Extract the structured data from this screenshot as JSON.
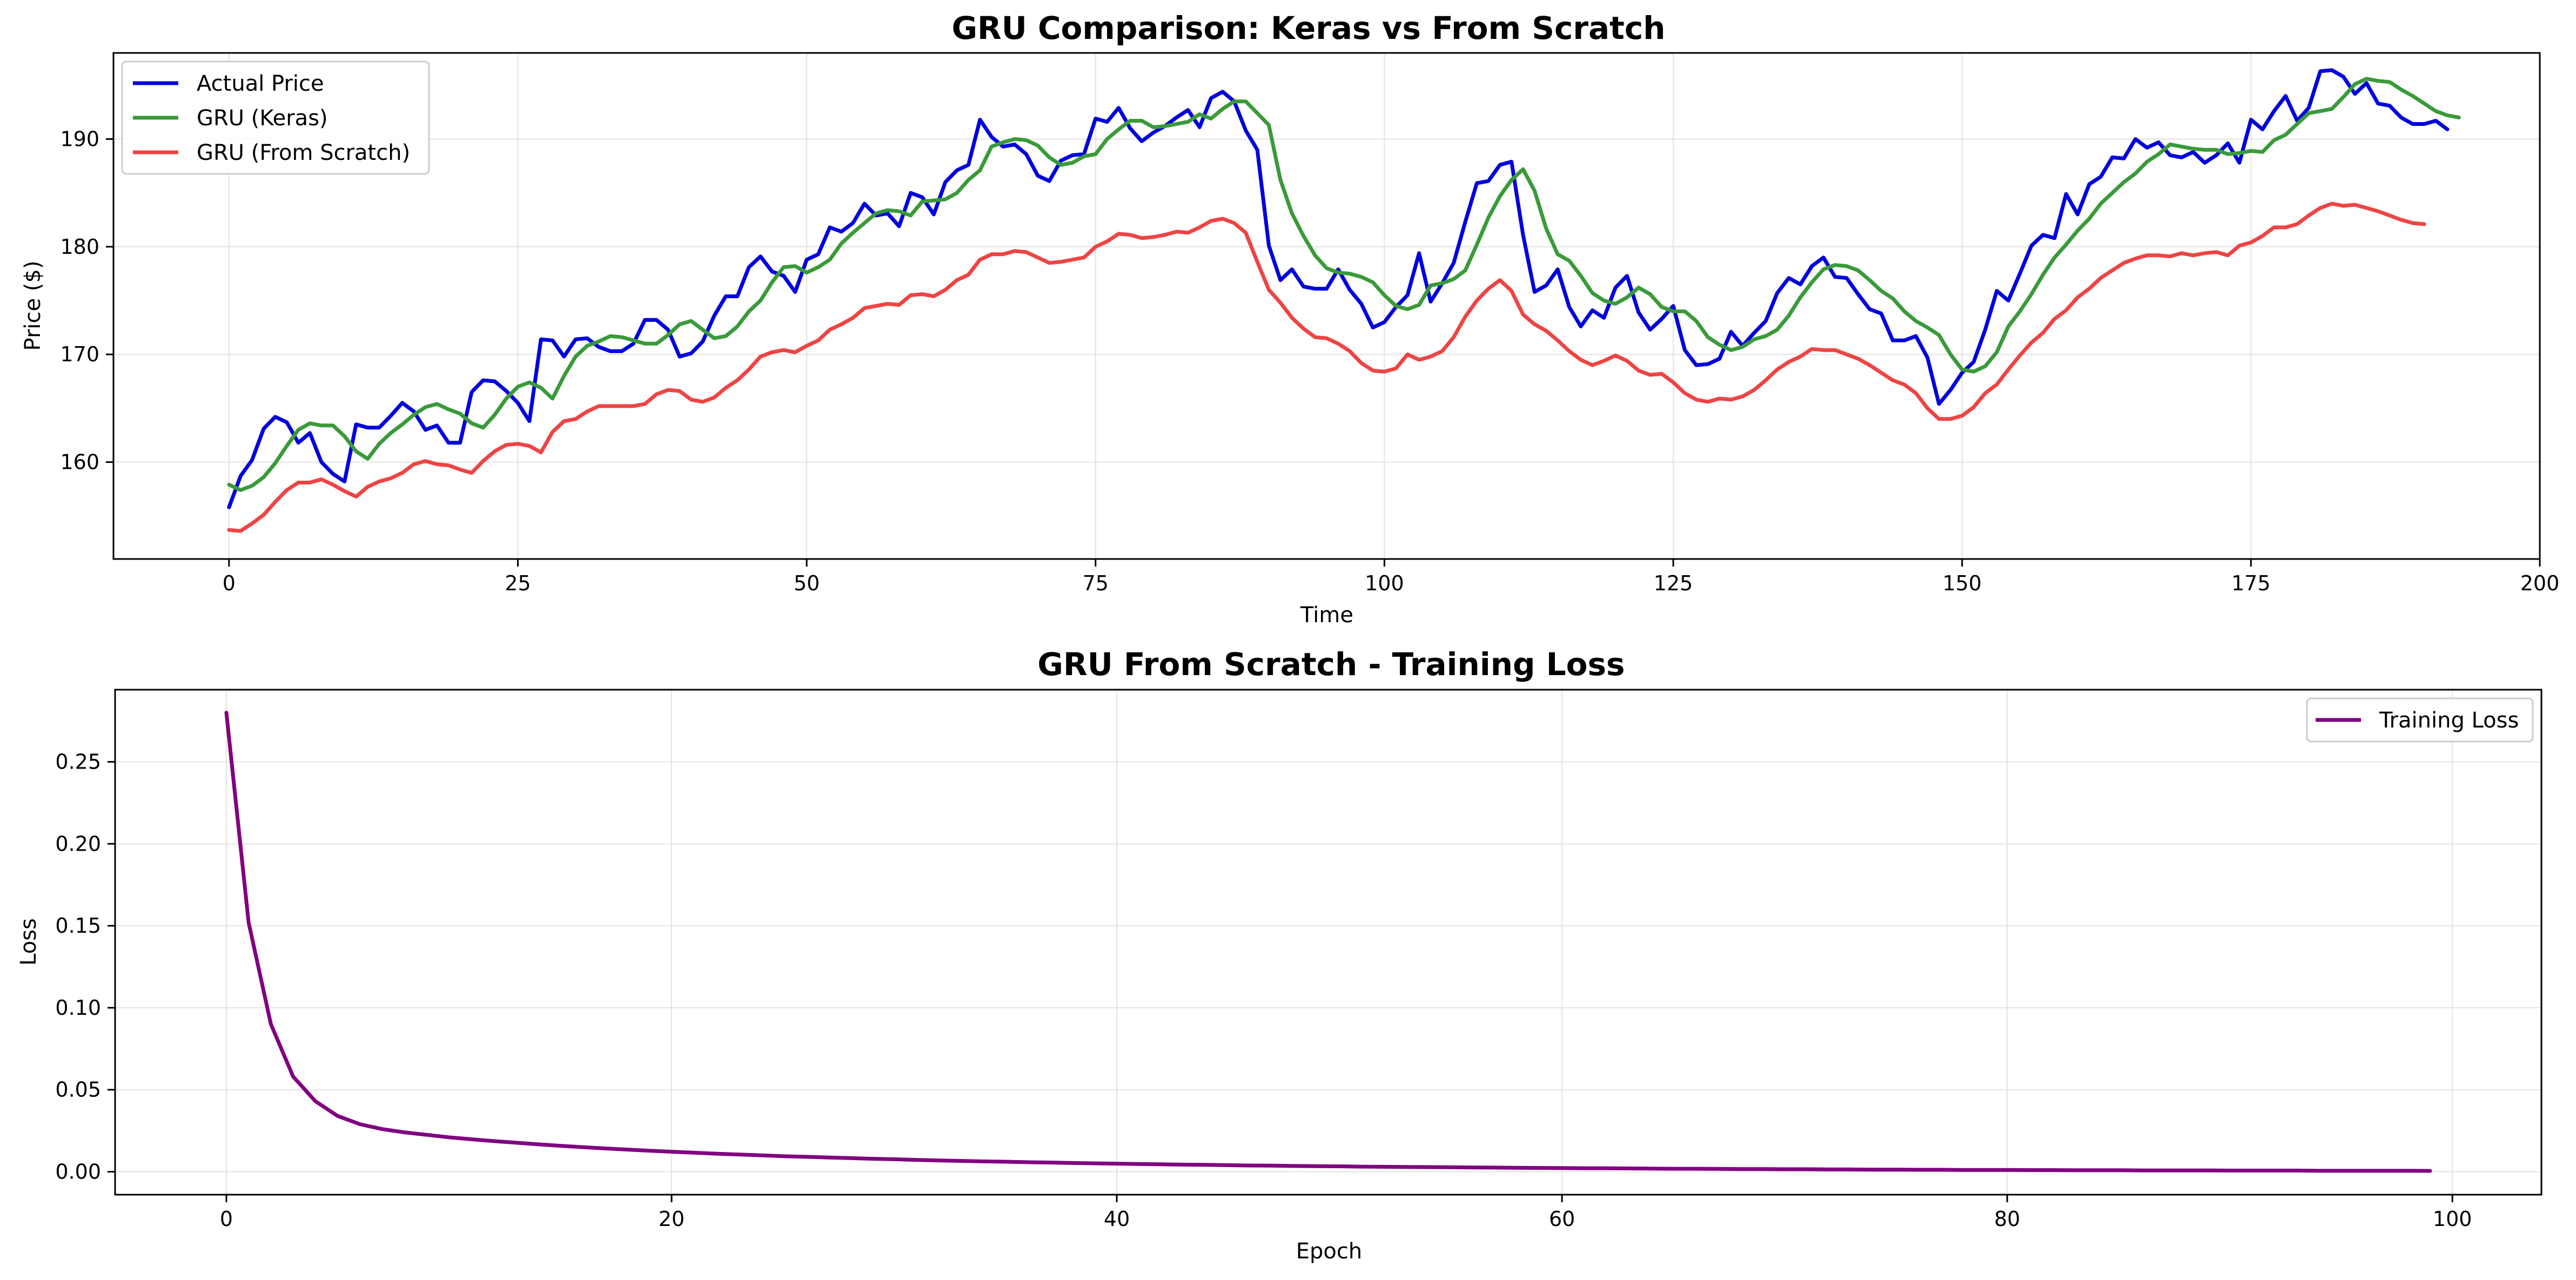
{
  "chart_data": [
    {
      "type": "line",
      "title": "GRU Comparison: Keras vs From Scratch",
      "xlabel": "Time",
      "ylabel": "Price ($)",
      "xlim": [
        -10,
        200
      ],
      "ylim": [
        151,
        198
      ],
      "xticks": [
        "0",
        "25",
        "50",
        "75",
        "100",
        "125",
        "150",
        "175",
        "200"
      ],
      "yticks": [
        "160",
        "170",
        "180",
        "190"
      ],
      "grid": true,
      "legend_position": "upper-left",
      "series": [
        {
          "name": "Actual Price",
          "color": "#0000dd",
          "x_start": 0,
          "values": [
            155.8,
            158.7,
            160.2,
            163.1,
            164.2,
            163.7,
            161.8,
            162.7,
            160.0,
            158.9,
            158.2,
            163.5,
            163.2,
            163.2,
            164.3,
            165.5,
            164.7,
            163.0,
            163.4,
            161.8,
            161.8,
            166.5,
            167.6,
            167.5,
            166.6,
            165.5,
            163.8,
            171.4,
            171.3,
            169.8,
            171.4,
            171.5,
            170.7,
            170.3,
            170.3,
            171.0,
            173.2,
            173.2,
            172.3,
            169.8,
            170.1,
            171.2,
            173.6,
            175.4,
            175.4,
            178.1,
            179.1,
            177.7,
            177.3,
            175.8,
            178.8,
            179.3,
            181.8,
            181.4,
            182.2,
            184.0,
            182.9,
            183.1,
            181.9,
            185.0,
            184.6,
            183.0,
            186.0,
            187.1,
            187.6,
            191.8,
            190.2,
            189.3,
            189.5,
            188.6,
            186.6,
            186.1,
            188.0,
            188.5,
            188.6,
            191.9,
            191.6,
            192.9,
            191.0,
            189.8,
            190.6,
            191.2,
            192.0,
            192.7,
            191.1,
            193.8,
            194.4,
            193.5,
            190.8,
            189.0,
            180.1,
            176.9,
            177.9,
            176.3,
            176.1,
            176.1,
            177.9,
            176.0,
            174.7,
            172.5,
            173.0,
            174.4,
            175.5,
            179.4,
            174.9,
            176.6,
            178.5,
            182.3,
            185.9,
            186.1,
            187.6,
            187.9,
            181.1,
            175.8,
            176.4,
            177.9,
            174.4,
            172.6,
            174.1,
            173.4,
            176.2,
            177.3,
            173.9,
            172.3,
            173.3,
            174.5,
            170.4,
            169.0,
            169.1,
            169.6,
            172.1,
            170.8,
            172.0,
            173.1,
            175.7,
            177.1,
            176.5,
            178.2,
            179.0,
            177.2,
            177.1,
            175.6,
            174.2,
            173.8,
            171.3,
            171.3,
            171.7,
            169.7,
            165.4,
            166.7,
            168.3,
            169.3,
            172.3,
            175.9,
            175.0,
            177.5,
            180.1,
            181.1,
            180.8,
            184.9,
            183.0,
            185.8,
            186.5,
            188.3,
            188.2,
            190.0,
            189.2,
            189.7,
            188.5,
            188.3,
            188.8,
            187.8,
            188.5,
            189.6,
            187.8,
            191.8,
            190.9,
            192.6,
            194.0,
            191.7,
            192.9,
            196.3,
            196.4,
            195.8,
            194.2,
            195.2,
            193.3,
            193.1,
            192.0,
            191.4,
            191.4,
            191.7,
            190.9
          ]
        },
        {
          "name": "GRU (Keras)",
          "color": "#3a9a3a",
          "x_start": 0,
          "values": [
            157.9,
            157.4,
            157.8,
            158.6,
            159.9,
            161.5,
            163.0,
            163.6,
            163.4,
            163.4,
            162.4,
            161.0,
            160.3,
            161.7,
            162.7,
            163.5,
            164.4,
            165.1,
            165.4,
            164.9,
            164.5,
            163.6,
            163.2,
            164.4,
            165.9,
            167.0,
            167.4,
            166.9,
            165.9,
            168.0,
            169.8,
            170.8,
            171.2,
            171.7,
            171.6,
            171.3,
            171.0,
            171.0,
            171.8,
            172.8,
            173.1,
            172.3,
            171.5,
            171.7,
            172.6,
            174.0,
            175.0,
            176.7,
            178.1,
            178.2,
            177.6,
            178.1,
            178.8,
            180.3,
            181.3,
            182.2,
            183.1,
            183.4,
            183.3,
            182.9,
            184.2,
            184.3,
            184.4,
            185.0,
            186.2,
            187.1,
            189.3,
            189.7,
            190.0,
            189.9,
            189.4,
            188.3,
            187.6,
            187.8,
            188.4,
            188.6,
            190.0,
            190.9,
            191.7,
            191.7,
            191.1,
            191.2,
            191.4,
            191.6,
            192.3,
            191.9,
            192.8,
            193.5,
            193.5,
            192.4,
            191.3,
            186.2,
            183.1,
            181.0,
            179.2,
            178.0,
            177.6,
            177.5,
            177.2,
            176.7,
            175.5,
            174.5,
            174.2,
            174.6,
            176.4,
            176.6,
            177.0,
            177.8,
            180.2,
            182.7,
            184.7,
            186.2,
            187.2,
            185.2,
            181.7,
            179.3,
            178.7,
            177.3,
            175.7,
            175.0,
            174.7,
            175.3,
            176.2,
            175.6,
            174.4,
            174.0,
            174.0,
            173.1,
            171.6,
            170.9,
            170.4,
            170.7,
            171.4,
            171.7,
            172.3,
            173.6,
            175.3,
            176.7,
            177.9,
            178.3,
            178.2,
            177.8,
            176.9,
            175.9,
            175.2,
            174.0,
            173.1,
            172.5,
            171.8,
            170.0,
            168.6,
            168.4,
            168.9,
            170.2,
            172.6,
            174.0,
            175.6,
            177.4,
            179.0,
            180.2,
            181.5,
            182.6,
            184.0,
            185.0,
            186.0,
            186.8,
            187.9,
            188.6,
            189.5,
            189.3,
            189.1,
            189.0,
            189.0,
            188.6,
            188.7,
            188.9,
            188.8,
            189.9,
            190.4,
            191.4,
            192.4,
            192.6,
            192.8,
            193.9,
            195.1,
            195.6,
            195.4,
            195.3,
            194.6,
            194.0,
            193.3,
            192.6,
            192.2,
            192.0
          ]
        },
        {
          "name": "GRU (From Scratch)",
          "color": "#ee4444",
          "x_start": 0,
          "values": [
            153.7,
            153.6,
            154.3,
            155.1,
            156.3,
            157.4,
            158.1,
            158.1,
            158.4,
            157.9,
            157.3,
            156.8,
            157.7,
            158.2,
            158.5,
            159.0,
            159.8,
            160.1,
            159.8,
            159.7,
            159.3,
            159.0,
            160.1,
            161.0,
            161.6,
            161.7,
            161.5,
            160.9,
            162.8,
            163.8,
            164.0,
            164.7,
            165.2,
            165.2,
            165.2,
            165.2,
            165.4,
            166.3,
            166.7,
            166.6,
            165.8,
            165.6,
            166.0,
            166.9,
            167.6,
            168.6,
            169.8,
            170.2,
            170.4,
            170.2,
            170.8,
            171.3,
            172.3,
            172.8,
            173.4,
            174.3,
            174.5,
            174.7,
            174.6,
            175.5,
            175.6,
            175.4,
            176.0,
            176.9,
            177.4,
            178.8,
            179.3,
            179.3,
            179.6,
            179.5,
            179.0,
            178.5,
            178.6,
            178.8,
            179.0,
            180.0,
            180.5,
            181.2,
            181.1,
            180.8,
            180.9,
            181.1,
            181.4,
            181.3,
            181.8,
            182.4,
            182.6,
            182.2,
            181.3,
            178.6,
            176.0,
            174.8,
            173.4,
            172.4,
            171.6,
            171.5,
            171.0,
            170.3,
            169.2,
            168.5,
            168.4,
            168.7,
            170.0,
            169.5,
            169.8,
            170.3,
            171.6,
            173.5,
            175.0,
            176.1,
            176.9,
            175.9,
            173.7,
            172.8,
            172.2,
            171.3,
            170.3,
            169.5,
            169.0,
            169.4,
            169.9,
            169.4,
            168.5,
            168.1,
            168.2,
            167.4,
            166.4,
            165.8,
            165.6,
            165.9,
            165.8,
            166.1,
            166.7,
            167.6,
            168.6,
            169.3,
            169.8,
            170.5,
            170.4,
            170.4,
            170.0,
            169.6,
            169.0,
            168.3,
            167.6,
            167.2,
            166.4,
            165.0,
            164.0,
            164.0,
            164.3,
            165.1,
            166.4,
            167.2,
            168.6,
            169.9,
            171.1,
            172.0,
            173.3,
            174.1,
            175.3,
            176.1,
            177.1,
            177.8,
            178.5,
            178.9,
            179.2,
            179.2,
            179.1,
            179.4,
            179.2,
            179.4,
            179.5,
            179.2,
            180.1,
            180.4,
            181.0,
            181.8,
            181.8,
            182.1,
            182.9,
            183.6,
            184.0,
            183.8,
            183.9,
            183.6,
            183.3,
            182.9,
            182.5,
            182.2,
            182.1
          ]
        }
      ]
    },
    {
      "type": "line",
      "title": "GRU From Scratch - Training Loss",
      "xlabel": "Epoch",
      "ylabel": "Loss",
      "xlim": [
        -5,
        104
      ],
      "ylim": [
        -0.014,
        0.294
      ],
      "xticks": [
        "0",
        "20",
        "40",
        "60",
        "80",
        "100"
      ],
      "yticks": [
        "0.00",
        "0.05",
        "0.10",
        "0.15",
        "0.20",
        "0.25"
      ],
      "grid": true,
      "legend_position": "upper-right",
      "series": [
        {
          "name": "Training Loss",
          "color": "#800080",
          "x_start": 0,
          "values": [
            0.28,
            0.152,
            0.09,
            0.058,
            0.043,
            0.034,
            0.029,
            0.026,
            0.024,
            0.0225,
            0.021,
            0.0198,
            0.0187,
            0.0177,
            0.0167,
            0.0158,
            0.015,
            0.0142,
            0.0135,
            0.0128,
            0.0122,
            0.0116,
            0.011,
            0.0105,
            0.01,
            0.0095,
            0.0091,
            0.0087,
            0.0083,
            0.0079,
            0.0076,
            0.0072,
            0.0069,
            0.0066,
            0.0063,
            0.0061,
            0.0058,
            0.0056,
            0.0053,
            0.0051,
            0.0049,
            0.0047,
            0.0045,
            0.0043,
            0.0042,
            0.004,
            0.0038,
            0.0037,
            0.0035,
            0.0034,
            0.0033,
            0.0031,
            0.003,
            0.0029,
            0.0028,
            0.0027,
            0.0026,
            0.0025,
            0.0024,
            0.0023,
            0.0022,
            0.0021,
            0.0021,
            0.002,
            0.0019,
            0.0018,
            0.0018,
            0.0017,
            0.0016,
            0.0016,
            0.0015,
            0.0015,
            0.0014,
            0.0014,
            0.0013,
            0.0013,
            0.0012,
            0.0012,
            0.0011,
            0.0011,
            0.0011,
            0.001,
            0.001,
            0.0009,
            0.0009,
            0.0009,
            0.0008,
            0.0008,
            0.0008,
            0.0008,
            0.0007,
            0.0007,
            0.0007,
            0.0007,
            0.0006,
            0.0006,
            0.0006,
            0.0006,
            0.0006,
            0.0005
          ]
        }
      ]
    }
  ]
}
